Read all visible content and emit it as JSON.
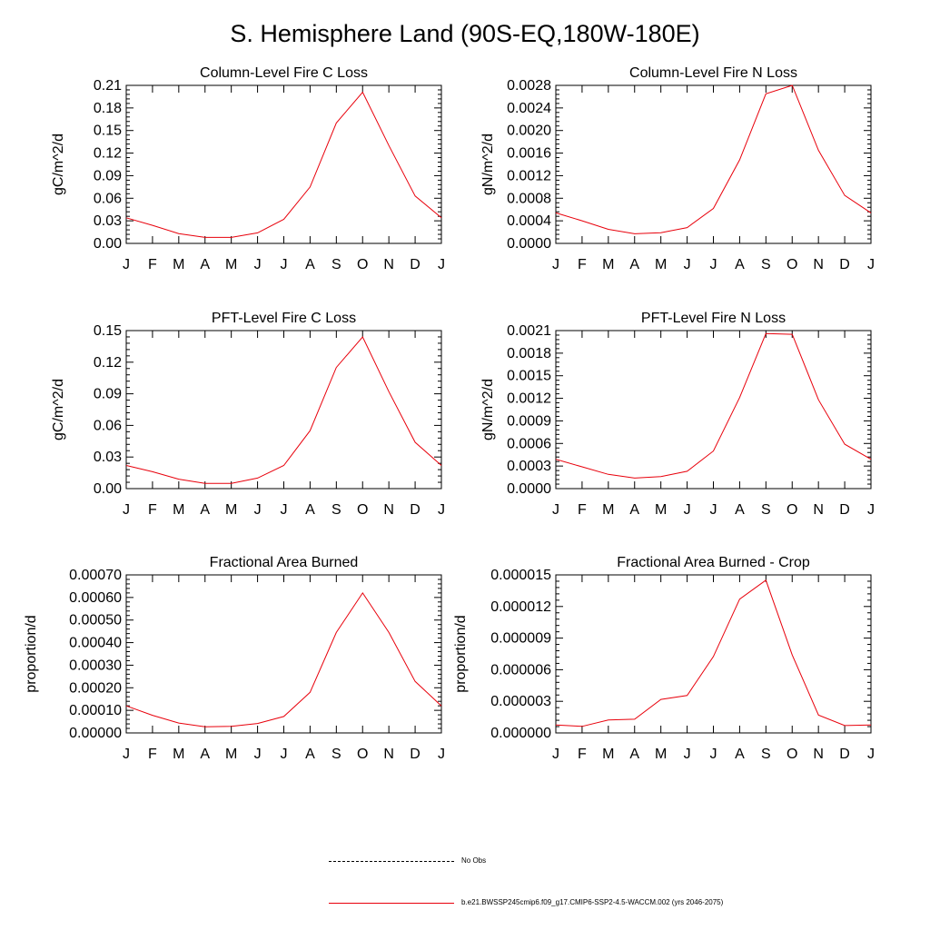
{
  "page_title": "S. Hemisphere Land (90S-EQ,180W-180E)",
  "legend": [
    {
      "label": "No Obs",
      "color": "#000000",
      "style": "dashed"
    },
    {
      "label": "b.e21.BWSSP245cmip6.f09_g17.CMIP6-SSP2-4.5-WACCM.002 (yrs 2046-2075)",
      "color": "#e8000b",
      "style": "solid"
    }
  ],
  "chart_data": [
    {
      "type": "line",
      "title": "Column-Level Fire C Loss",
      "ylabel": "gC/m^2/d",
      "categories": [
        "J",
        "F",
        "M",
        "A",
        "M",
        "J",
        "J",
        "A",
        "S",
        "O",
        "N",
        "D",
        "J"
      ],
      "ylim": [
        0,
        0.21
      ],
      "yticks": [
        "0.00",
        "0.03",
        "0.06",
        "0.09",
        "0.12",
        "0.15",
        "0.18",
        "0.21"
      ],
      "series": [
        {
          "color": "#e8000b",
          "values": [
            0.034,
            0.024,
            0.013,
            0.008,
            0.008,
            0.014,
            0.032,
            0.075,
            0.16,
            0.201,
            0.13,
            0.063,
            0.034
          ]
        }
      ]
    },
    {
      "type": "line",
      "title": "Column-Level Fire N Loss",
      "ylabel": "gN/m^2/d",
      "categories": [
        "J",
        "F",
        "M",
        "A",
        "M",
        "J",
        "J",
        "A",
        "S",
        "O",
        "N",
        "D",
        "J"
      ],
      "ylim": [
        0,
        0.0028
      ],
      "yticks": [
        "0.0000",
        "0.0004",
        "0.0008",
        "0.0012",
        "0.0016",
        "0.0020",
        "0.0024",
        "0.0028"
      ],
      "series": [
        {
          "color": "#e8000b",
          "values": [
            0.00054,
            0.0004,
            0.00025,
            0.00017,
            0.00019,
            0.00028,
            0.00062,
            0.00148,
            0.00265,
            0.0028,
            0.00165,
            0.00085,
            0.00054
          ]
        }
      ]
    },
    {
      "type": "line",
      "title": "PFT-Level Fire C Loss",
      "ylabel": "gC/m^2/d",
      "categories": [
        "J",
        "F",
        "M",
        "A",
        "M",
        "J",
        "J",
        "A",
        "S",
        "O",
        "N",
        "D",
        "J"
      ],
      "ylim": [
        0,
        0.15
      ],
      "yticks": [
        "0.00",
        "0.03",
        "0.06",
        "0.09",
        "0.12",
        "0.15"
      ],
      "series": [
        {
          "color": "#e8000b",
          "values": [
            0.022,
            0.016,
            0.009,
            0.005,
            0.005,
            0.01,
            0.022,
            0.055,
            0.115,
            0.144,
            0.092,
            0.044,
            0.022
          ]
        }
      ]
    },
    {
      "type": "line",
      "title": "PFT-Level Fire N Loss",
      "ylabel": "gN/m^2/d",
      "categories": [
        "J",
        "F",
        "M",
        "A",
        "M",
        "J",
        "J",
        "A",
        "S",
        "O",
        "N",
        "D",
        "J"
      ],
      "ylim": [
        0,
        0.0021
      ],
      "yticks": [
        "0.0000",
        "0.0003",
        "0.0006",
        "0.0009",
        "0.0012",
        "0.0015",
        "0.0018",
        "0.0021"
      ],
      "series": [
        {
          "color": "#e8000b",
          "values": [
            0.00039,
            0.00029,
            0.00019,
            0.00014,
            0.00016,
            0.00023,
            0.0005,
            0.00121,
            0.00206,
            0.00205,
            0.00118,
            0.00059,
            0.00039
          ]
        }
      ]
    },
    {
      "type": "line",
      "title": "Fractional Area Burned",
      "ylabel": "proportion/d",
      "categories": [
        "J",
        "F",
        "M",
        "A",
        "M",
        "J",
        "J",
        "A",
        "S",
        "O",
        "N",
        "D",
        "J"
      ],
      "ylim": [
        0,
        0.0007
      ],
      "yticks": [
        "0.00000",
        "0.00010",
        "0.00020",
        "0.00030",
        "0.00040",
        "0.00050",
        "0.00060",
        "0.00070"
      ],
      "series": [
        {
          "color": "#e8000b",
          "values": [
            0.00012,
            7.8e-05,
            4.4e-05,
            2.7e-05,
            2.9e-05,
            4.2e-05,
            7.3e-05,
            0.00018,
            0.000445,
            0.00062,
            0.000445,
            0.000228,
            0.00012
          ]
        }
      ]
    },
    {
      "type": "line",
      "title": "Fractional Area Burned - Crop",
      "ylabel": "proportion/d",
      "categories": [
        "J",
        "F",
        "M",
        "A",
        "M",
        "J",
        "J",
        "A",
        "S",
        "O",
        "N",
        "D",
        "J"
      ],
      "ylim": [
        0,
        1.5e-05
      ],
      "yticks": [
        "0.000000",
        "0.000003",
        "0.000006",
        "0.000009",
        "0.000012",
        "0.000015"
      ],
      "series": [
        {
          "color": "#e8000b",
          "values": [
            7.5e-07,
            6.2e-07,
            1.22e-06,
            1.3e-06,
            3.18e-06,
            3.55e-06,
            7.25e-06,
            1.27e-05,
            1.45e-05,
            7.4e-06,
            1.7e-06,
            7e-07,
            7.5e-07
          ]
        }
      ]
    }
  ]
}
